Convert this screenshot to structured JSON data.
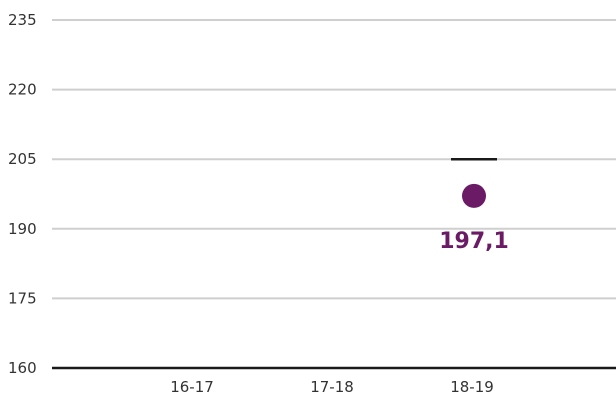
{
  "chart_data": {
    "type": "scatter",
    "categories": [
      "16-17",
      "17-18",
      "18-19"
    ],
    "y_ticks": [
      "235",
      "220",
      "205",
      "190",
      "175",
      "160"
    ],
    "ylim": [
      160,
      235
    ],
    "grid": true,
    "series": [
      {
        "values": [
          null,
          null,
          197.1
        ],
        "labels": [
          "",
          "",
          "197,1"
        ]
      }
    ],
    "reference": {
      "category": "18-19",
      "value": 205
    },
    "colors": {
      "point": "#6b1a66",
      "grid": "#cfcfcf",
      "axis": "#1a1a1a",
      "reference": "#1a1a1a"
    }
  }
}
